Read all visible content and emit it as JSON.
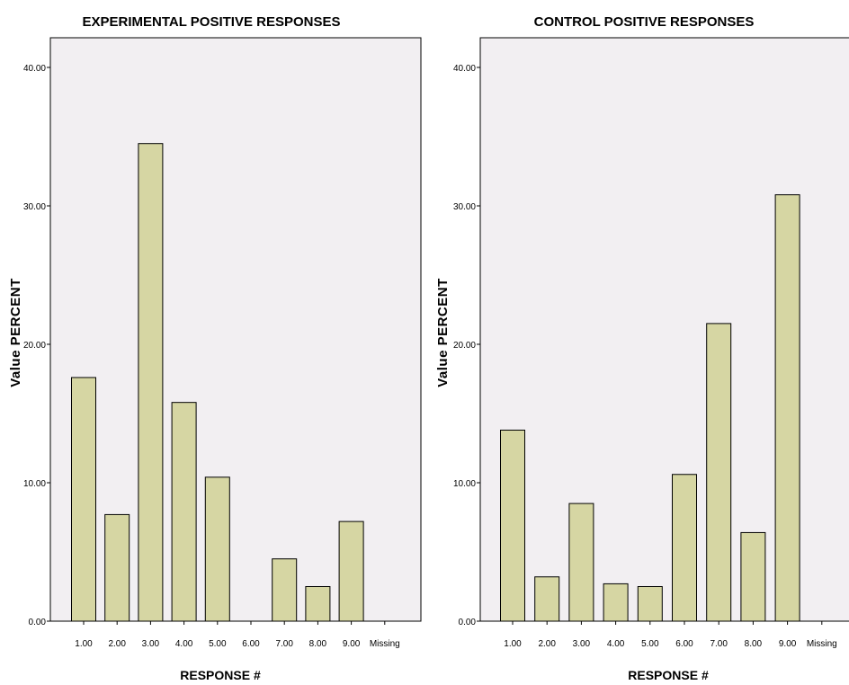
{
  "chart_data": [
    {
      "type": "bar",
      "title": "EXPERIMENTAL POSITIVE RESPONSES",
      "xlabel": "RESPONSE #",
      "ylabel": "Value PERCENT",
      "ylim": [
        0,
        40
      ],
      "yticks": [
        "0.00",
        "10.00",
        "20.00",
        "30.00",
        "40.00"
      ],
      "categories": [
        "1.00",
        "2.00",
        "3.00",
        "4.00",
        "5.00",
        "6.00",
        "7.00",
        "8.00",
        "9.00",
        "Missing"
      ],
      "values": [
        17.6,
        7.7,
        34.5,
        15.8,
        10.4,
        0,
        4.5,
        2.5,
        7.2,
        0
      ],
      "grid": false,
      "colors": {
        "bar": "#d6d6a3",
        "plot_bg": "#f2eff2",
        "border": "#000000"
      }
    },
    {
      "type": "bar",
      "title": "CONTROL POSITIVE RESPONSES",
      "xlabel": "RESPONSE #",
      "ylabel": "Value PERCENT",
      "ylim": [
        0,
        40
      ],
      "yticks": [
        "0.00",
        "10.00",
        "20.00",
        "30.00",
        "40.00"
      ],
      "categories": [
        "1.00",
        "2.00",
        "3.00",
        "4.00",
        "5.00",
        "6.00",
        "7.00",
        "8.00",
        "9.00",
        "Missing"
      ],
      "values": [
        13.8,
        3.2,
        8.5,
        2.7,
        2.5,
        10.6,
        21.5,
        6.4,
        30.8,
        0
      ],
      "grid": false,
      "colors": {
        "bar": "#d6d6a3",
        "plot_bg": "#f2eff2",
        "border": "#000000"
      }
    }
  ]
}
